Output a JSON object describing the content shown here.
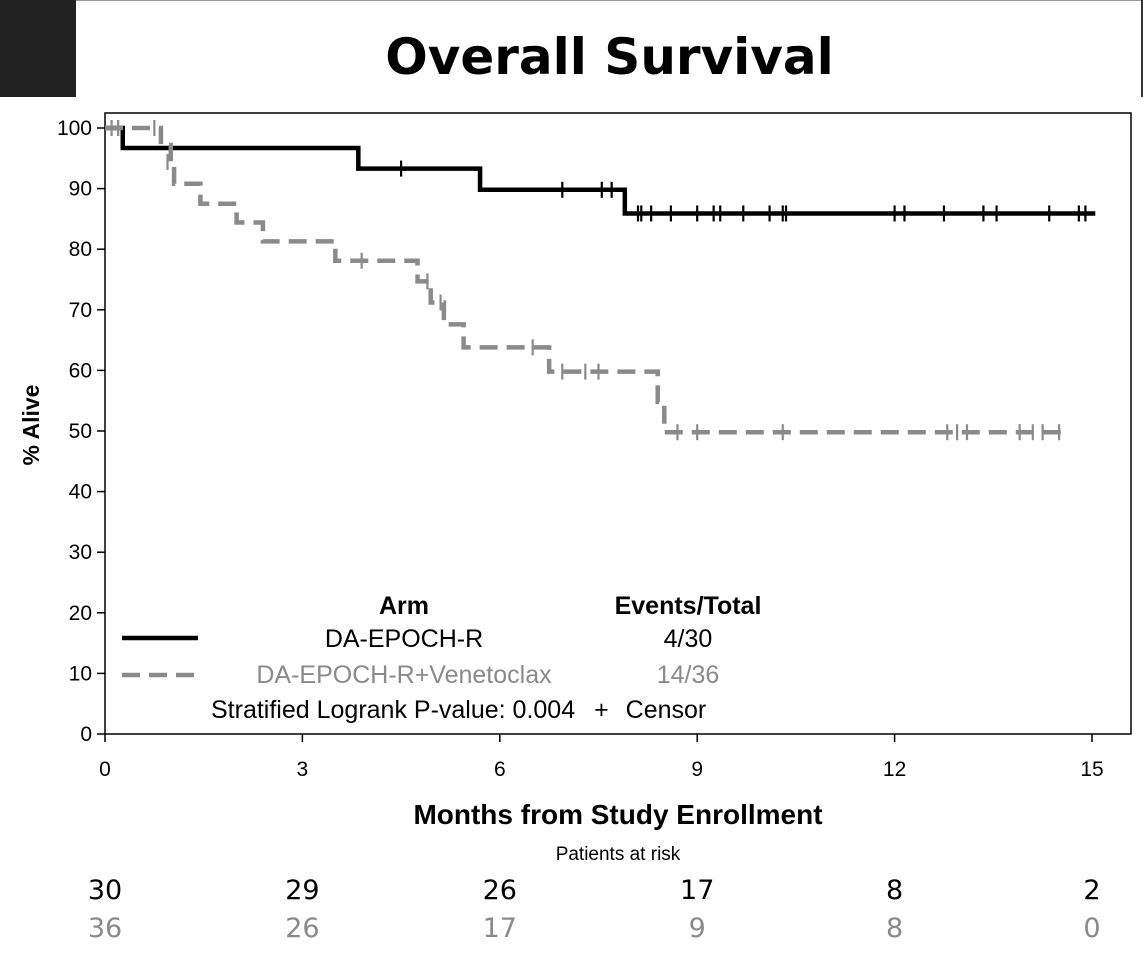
{
  "chart_data": {
    "type": "kaplan-meier",
    "title": "Overall Survival",
    "xlabel": "Months from Study Enrollment",
    "ylabel": "% Alive",
    "xlim": [
      0,
      15
    ],
    "ylim": [
      0,
      100
    ],
    "xticks": [
      0,
      3,
      6,
      9,
      12,
      15
    ],
    "yticks": [
      0,
      10,
      20,
      30,
      40,
      50,
      60,
      70,
      80,
      90,
      100
    ],
    "legend": {
      "title": "Arm",
      "events_header": "Events/Total",
      "footnote": "Stratified Logrank P-value: 0.004",
      "censor_symbol": "+",
      "censor_label": "Censor"
    },
    "series": [
      {
        "name": "DA-EPOCH-R",
        "events_total": "4/30",
        "color": "#000000",
        "style": "solid",
        "steps": [
          [
            0,
            100
          ],
          [
            0.27,
            96.7
          ],
          [
            3.85,
            93.3
          ],
          [
            5.7,
            89.8
          ],
          [
            7.9,
            85.9
          ],
          [
            15.05,
            85.9
          ]
        ],
        "censors": [
          [
            4.5,
            93.3
          ],
          [
            6.95,
            89.8
          ],
          [
            7.55,
            89.8
          ],
          [
            7.7,
            89.8
          ],
          [
            8.1,
            85.9
          ],
          [
            8.15,
            85.9
          ],
          [
            8.3,
            85.9
          ],
          [
            8.6,
            85.9
          ],
          [
            9.0,
            85.9
          ],
          [
            9.25,
            85.9
          ],
          [
            9.35,
            85.9
          ],
          [
            9.7,
            85.9
          ],
          [
            10.1,
            85.9
          ],
          [
            10.3,
            85.9
          ],
          [
            10.35,
            85.9
          ],
          [
            12.0,
            85.9
          ],
          [
            12.15,
            85.9
          ],
          [
            12.75,
            85.9
          ],
          [
            13.35,
            85.9
          ],
          [
            13.55,
            85.9
          ],
          [
            14.35,
            85.9
          ],
          [
            14.8,
            85.9
          ],
          [
            14.9,
            85.9
          ]
        ]
      },
      {
        "name": "DA-EPOCH-R+Venetoclax",
        "events_total": "14/36",
        "color": "#8a8a8a",
        "style": "dashed",
        "steps": [
          [
            0,
            100
          ],
          [
            0.85,
            97.2
          ],
          [
            1.0,
            94.4
          ],
          [
            1.05,
            90.8
          ],
          [
            1.45,
            87.5
          ],
          [
            2.0,
            84.4
          ],
          [
            2.4,
            81.3
          ],
          [
            3.5,
            78.1
          ],
          [
            4.75,
            74.7
          ],
          [
            4.95,
            71.2
          ],
          [
            5.15,
            67.6
          ],
          [
            5.45,
            63.8
          ],
          [
            6.75,
            59.8
          ],
          [
            8.4,
            54.8
          ],
          [
            8.5,
            49.8
          ],
          [
            14.6,
            49.8
          ]
        ],
        "censors": [
          [
            0.1,
            100
          ],
          [
            0.2,
            100
          ],
          [
            0.75,
            100
          ],
          [
            0.95,
            94.4
          ],
          [
            3.9,
            78.1
          ],
          [
            4.9,
            74.7
          ],
          [
            5.1,
            71.2
          ],
          [
            6.5,
            63.8
          ],
          [
            6.95,
            59.8
          ],
          [
            7.3,
            59.8
          ],
          [
            7.5,
            59.8
          ],
          [
            8.7,
            49.8
          ],
          [
            9.0,
            49.8
          ],
          [
            10.3,
            49.8
          ],
          [
            12.8,
            49.8
          ],
          [
            12.95,
            49.8
          ],
          [
            13.1,
            49.8
          ],
          [
            13.9,
            49.8
          ],
          [
            14.1,
            49.8
          ],
          [
            14.25,
            49.8
          ],
          [
            14.5,
            49.8
          ]
        ]
      }
    ],
    "at_risk": {
      "title": "Patients at risk",
      "rows": [
        {
          "series": "DA-EPOCH-R",
          "values": [
            "30",
            "29",
            "26",
            "17",
            "8",
            "2"
          ]
        },
        {
          "series": "DA-EPOCH-R+Venetoclax",
          "values": [
            "36",
            "26",
            "17",
            "9",
            "8",
            "0"
          ]
        }
      ]
    }
  }
}
